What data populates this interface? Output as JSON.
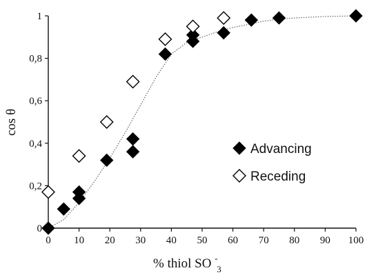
{
  "chart_data": {
    "type": "scatter",
    "xlabel": "% thiol  SO",
    "xlabel_sub": "3",
    "xlabel_sup": "-",
    "ylabel": "cos θ",
    "xlim": [
      0,
      100
    ],
    "ylim": [
      0,
      1
    ],
    "x_ticks": [
      "0",
      "10",
      "20",
      "30",
      "40",
      "50",
      "60",
      "70",
      "80",
      "90",
      "100"
    ],
    "y_ticks": [
      "0",
      "0,2",
      "0,4",
      "0,6",
      "0,8",
      "1"
    ],
    "grid": false,
    "legend_position": "right",
    "series": [
      {
        "name": "Advancing",
        "marker": "filled-diamond",
        "color": "#000000",
        "points": [
          [
            0,
            0.0
          ],
          [
            5,
            0.09
          ],
          [
            10,
            0.14
          ],
          [
            10,
            0.17
          ],
          [
            19,
            0.32
          ],
          [
            27.5,
            0.36
          ],
          [
            27.5,
            0.42
          ],
          [
            38,
            0.82
          ],
          [
            47,
            0.88
          ],
          [
            47,
            0.91
          ],
          [
            57,
            0.92
          ],
          [
            66,
            0.98
          ],
          [
            75,
            0.99
          ],
          [
            100,
            1.0
          ]
        ]
      },
      {
        "name": "Receding",
        "marker": "open-diamond",
        "color": "#000000",
        "points": [
          [
            0,
            0.17
          ],
          [
            10,
            0.34
          ],
          [
            19,
            0.5
          ],
          [
            27.5,
            0.69
          ],
          [
            38,
            0.89
          ],
          [
            47,
            0.95
          ],
          [
            57,
            0.99
          ]
        ]
      }
    ],
    "fit_curve": {
      "style": "dotted",
      "color": "#555555",
      "points": [
        [
          0,
          0.0
        ],
        [
          5,
          0.04
        ],
        [
          10,
          0.12
        ],
        [
          15,
          0.22
        ],
        [
          20,
          0.33
        ],
        [
          25,
          0.45
        ],
        [
          30,
          0.58
        ],
        [
          35,
          0.71
        ],
        [
          40,
          0.82
        ],
        [
          45,
          0.875
        ],
        [
          50,
          0.9
        ],
        [
          55,
          0.925
        ],
        [
          60,
          0.945
        ],
        [
          65,
          0.96
        ],
        [
          70,
          0.975
        ],
        [
          75,
          0.985
        ],
        [
          80,
          0.99
        ],
        [
          90,
          0.997
        ],
        [
          100,
          1.0
        ]
      ]
    }
  }
}
